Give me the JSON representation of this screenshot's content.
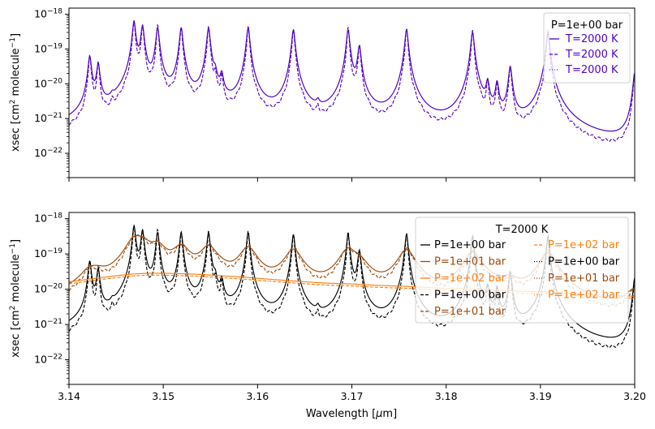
{
  "chart_data": [
    {
      "type": "line",
      "ylabel": "xsec [cm$^2$ molecule$^{-1}$]",
      "ylabel_main": "xsec [cm",
      "ylabel_sup1": "2",
      "ylabel_mid": " molecule",
      "ylabel_sup2": "−1",
      "ylabel_end": "]",
      "xlim": [
        3.14,
        3.2
      ],
      "ylim": [
        2e-23,
        1.5e-18
      ],
      "yscale": "log",
      "yticks": [
        {
          "base": "10",
          "exp": "−18"
        },
        {
          "base": "10",
          "exp": "−19"
        },
        {
          "base": "10",
          "exp": "−20"
        },
        {
          "base": "10",
          "exp": "−21"
        },
        {
          "base": "10",
          "exp": "−22"
        }
      ],
      "legend": {
        "title": "P=1e+00 bar",
        "placement": "upper right"
      },
      "series": [
        {
          "name": "T=2000 K",
          "color": "#4f00c8",
          "style": "solid"
        },
        {
          "name": "T=2000 K",
          "color": "#4f00c8",
          "style": "dashed"
        },
        {
          "name": "T=2000 K",
          "color": "#4f00c8",
          "style": "dotted"
        }
      ]
    },
    {
      "type": "line",
      "xlabel": "Wavelength [$\\mu$m]",
      "xlabel_main": "Wavelength [",
      "xlabel_mu": "μ",
      "xlabel_end": "m]",
      "ylabel": "xsec [cm$^2$ molecule$^{-1}$]",
      "xlim": [
        3.14,
        3.2
      ],
      "ylim": [
        2e-23,
        1.5e-18
      ],
      "yscale": "log",
      "xticks": [
        "3.14",
        "3.15",
        "3.16",
        "3.17",
        "3.18",
        "3.19",
        "3.20"
      ],
      "legend": {
        "title": "T=2000 K",
        "placement": "upper right",
        "columns": 2
      },
      "series": [
        {
          "name": "P=1e+00 bar",
          "color": "#000000",
          "style": "solid"
        },
        {
          "name": "P=1e+01 bar",
          "color": "#9c4a0c",
          "style": "solid"
        },
        {
          "name": "P=1e+02 bar",
          "color": "#ff7f0e",
          "style": "solid"
        },
        {
          "name": "P=1e+00 bar",
          "color": "#000000",
          "style": "dashed"
        },
        {
          "name": "P=1e+01 bar",
          "color": "#9c4a0c",
          "style": "dashed"
        },
        {
          "name": "P=1e+02 bar",
          "color": "#ff7f0e",
          "style": "dashed"
        },
        {
          "name": "P=1e+00 bar",
          "color": "#000000",
          "style": "dotted"
        },
        {
          "name": "P=1e+01 bar",
          "color": "#9c4a0c",
          "style": "dotted"
        },
        {
          "name": "P=1e+02 bar",
          "color": "#ff7f0e",
          "style": "dotted"
        }
      ]
    }
  ],
  "spectrum": {
    "line_centers": [
      3.1422,
      3.1431,
      3.1446,
      3.1469,
      3.1478,
      3.1494,
      3.1519,
      3.1548,
      3.1555,
      3.1562,
      3.159,
      3.1638,
      3.1664,
      3.1696,
      3.1708,
      3.1758,
      3.1828,
      3.1844,
      3.1854,
      3.1868,
      3.1908,
      3.2
    ],
    "line_strengths": [
      6e-20,
      3.5e-20,
      1e-21,
      6e-19,
      4.5e-19,
      4e-19,
      4e-19,
      4e-19,
      1.5e-20,
      1.5e-20,
      4e-19,
      3.5e-19,
      1e-21,
      3.5e-19,
      1.2e-19,
      3.5e-19,
      3e-19,
      1e-20,
      1e-20,
      3e-20,
      3e-19,
      2e-20
    ]
  }
}
